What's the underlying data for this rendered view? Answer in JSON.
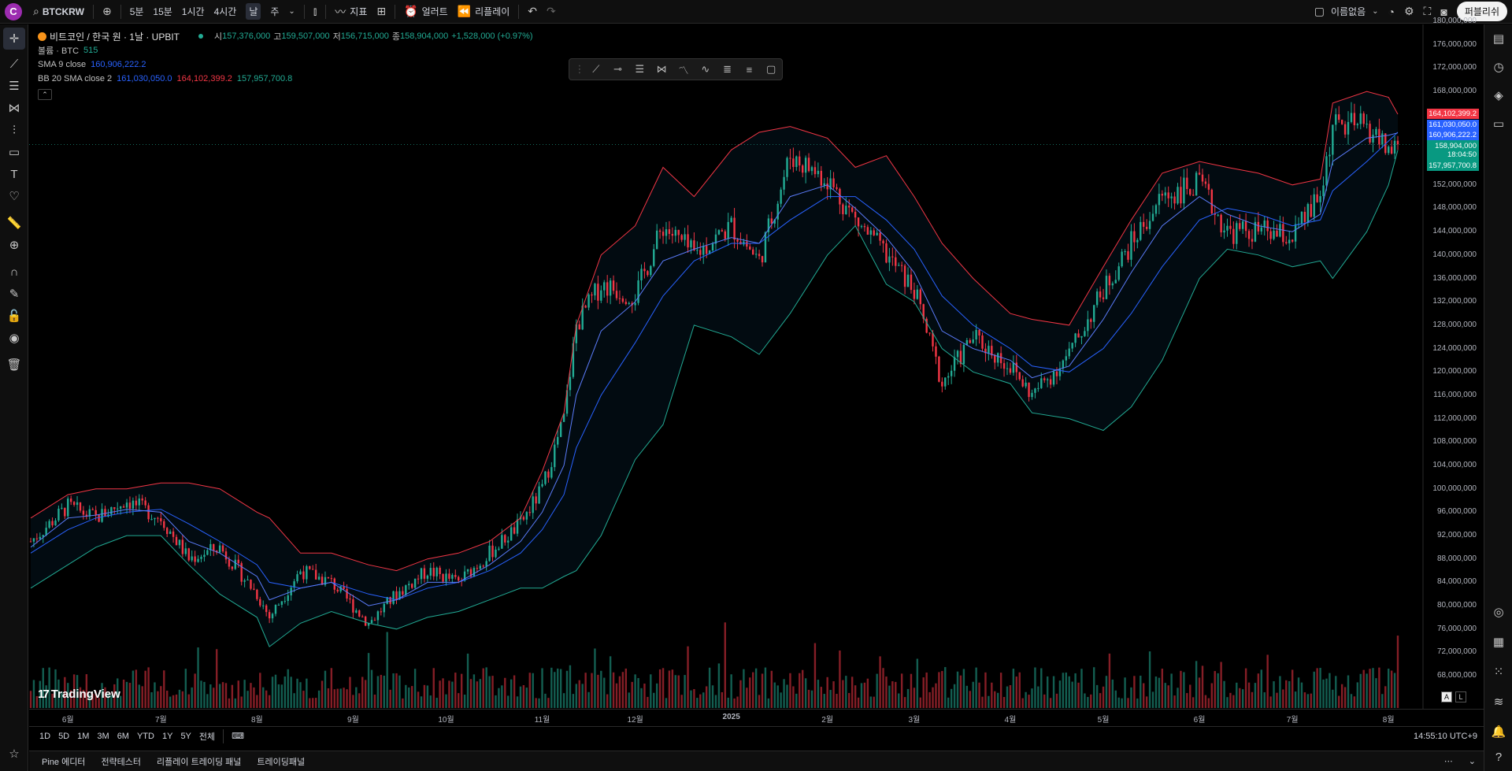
{
  "topbar": {
    "logo_letter": "C",
    "symbol": "BTCKRW",
    "timeframes": [
      "5분",
      "15분",
      "1시간",
      "4시간",
      "날",
      "주"
    ],
    "active_timeframe": "날",
    "indicators_label": "지표",
    "alert_label": "얼러트",
    "replay_label": "리플레이",
    "layout_name": "이름없음",
    "publish_label": "퍼블리쉬"
  },
  "legend": {
    "title": "비트코인 / 한국 원 · 1날 · UPBIT",
    "open_key": "시",
    "open": "157,376,000",
    "high_key": "고",
    "high": "159,507,000",
    "low_key": "저",
    "low": "156,715,000",
    "close_key": "종",
    "close": "158,904,000",
    "change": "+1,528,000 (+0.97%)",
    "volume_label": "볼륨 · BTC",
    "volume_value": "515",
    "sma_label": "SMA 9 close",
    "sma_value": "160,906,222.2",
    "bb_label": "BB 20 SMA close 2",
    "bb_basis": "161,030,050.0",
    "bb_upper": "164,102,399.2",
    "bb_lower": "157,957,700.8"
  },
  "price_tags": {
    "upper": "164,102,399.2",
    "basis": "161,030,050.0",
    "sma": "160,906,222.2",
    "last": "158,904,000",
    "countdown": "18:04:50",
    "lower": "157,957,700.8"
  },
  "colors": {
    "up": "#22ab94",
    "down": "#f23645",
    "sma": "#2962ff",
    "bb_upper": "#f23645",
    "bb_lower": "#22ab94"
  },
  "timeaxis": [
    "6월",
    "7월",
    "8월",
    "9월",
    "10월",
    "11월",
    "12월",
    "2025",
    "2월",
    "3월",
    "4월",
    "5월",
    "6월",
    "7월",
    "8월"
  ],
  "rangebar": {
    "ranges": [
      "1D",
      "5D",
      "1M",
      "3M",
      "6M",
      "YTD",
      "1Y",
      "5Y",
      "전체"
    ],
    "clock": "14:55:10 UTC+9"
  },
  "bottomtabs": [
    "Pine 에디터",
    "전략테스터",
    "리플레이 트레이딩 패널",
    "트레이딩패널"
  ],
  "watermark": "TradingView",
  "scale_toggles": [
    "A",
    "L"
  ],
  "chart_data": {
    "type": "line",
    "title": "비트코인 / 한국 원 · 1날 · UPBIT",
    "xlabel": "",
    "ylabel": "",
    "ylim": [
      66000000,
      180000000
    ],
    "yticks": [
      68000000,
      72000000,
      76000000,
      80000000,
      84000000,
      88000000,
      92000000,
      96000000,
      100000000,
      104000000,
      108000000,
      112000000,
      116000000,
      120000000,
      124000000,
      128000000,
      132000000,
      136000000,
      140000000,
      144000000,
      148000000,
      152000000,
      156000000,
      160000000,
      164000000,
      168000000,
      172000000,
      176000000,
      180000000
    ],
    "x": [
      "2024-05-20",
      "2024-06-01",
      "2024-06-10",
      "2024-06-20",
      "2024-07-01",
      "2024-07-10",
      "2024-07-20",
      "2024-08-01",
      "2024-08-05",
      "2024-08-15",
      "2024-08-25",
      "2024-09-06",
      "2024-09-15",
      "2024-09-25",
      "2024-10-05",
      "2024-10-15",
      "2024-10-25",
      "2024-11-01",
      "2024-11-08",
      "2024-11-12",
      "2024-11-20",
      "2024-12-01",
      "2024-12-10",
      "2024-12-20",
      "2025-01-01",
      "2025-01-10",
      "2025-01-20",
      "2025-02-01",
      "2025-02-10",
      "2025-02-20",
      "2025-03-01",
      "2025-03-10",
      "2025-03-20",
      "2025-04-01",
      "2025-04-08",
      "2025-04-20",
      "2025-05-01",
      "2025-05-10",
      "2025-05-20",
      "2025-06-01",
      "2025-06-10",
      "2025-06-20",
      "2025-07-01",
      "2025-07-10",
      "2025-07-14",
      "2025-07-25",
      "2025-08-01",
      "2025-08-04"
    ],
    "series": [
      {
        "name": "종",
        "values": [
          91000000,
          97000000,
          95000000,
          98000000,
          95000000,
          88000000,
          90000000,
          82000000,
          78000000,
          86000000,
          84000000,
          77000000,
          82000000,
          86000000,
          84000000,
          89000000,
          94000000,
          100000000,
          112000000,
          128000000,
          135000000,
          133000000,
          145000000,
          140000000,
          145000000,
          139000000,
          157000000,
          153000000,
          146000000,
          140000000,
          134000000,
          118000000,
          126000000,
          121000000,
          116000000,
          123000000,
          134000000,
          142000000,
          150000000,
          152000000,
          144000000,
          144000000,
          143000000,
          150000000,
          162000000,
          162000000,
          158000000,
          158904000
        ]
      },
      {
        "name": "SMA 9 close",
        "values": [
          90000000,
          95000000,
          95500000,
          96500000,
          96000000,
          91000000,
          89000000,
          85000000,
          81000000,
          83000000,
          84000000,
          80000000,
          81000000,
          84000000,
          84000000,
          87000000,
          91000000,
          96000000,
          104000000,
          116000000,
          127000000,
          132000000,
          139000000,
          141000000,
          143000000,
          142000000,
          150000000,
          152000000,
          148000000,
          143000000,
          137000000,
          127000000,
          124000000,
          122000000,
          119000000,
          121000000,
          129000000,
          137000000,
          145000000,
          150000000,
          147000000,
          145000000,
          144000000,
          147000000,
          156000000,
          160000000,
          160500000,
          160906222
        ]
      },
      {
        "name": "BB 20 SMA close 2",
        "values": [
          89000000,
          93000000,
          95000000,
          96000000,
          96500000,
          94000000,
          91000000,
          87000000,
          84000000,
          83000000,
          84000000,
          82000000,
          81000000,
          83000000,
          84000000,
          86000000,
          89000000,
          93000000,
          99000000,
          107000000,
          116000000,
          125000000,
          133000000,
          139000000,
          142000000,
          142000000,
          146000000,
          150000000,
          150000000,
          146000000,
          141000000,
          133000000,
          128000000,
          124000000,
          121000000,
          120000000,
          124000000,
          130000000,
          138000000,
          146000000,
          148000000,
          147000000,
          145000000,
          146000000,
          151000000,
          156000000,
          159500000,
          161030050
        ]
      },
      {
        "name": "upper",
        "values": [
          95000000,
          99000000,
          100000000,
          100000000,
          101000000,
          101000000,
          100000000,
          96000000,
          95000000,
          89000000,
          89000000,
          87000000,
          86000000,
          88000000,
          89000000,
          91000000,
          95000000,
          103000000,
          113000000,
          128000000,
          140000000,
          145000000,
          155000000,
          150000000,
          158000000,
          161000000,
          162000000,
          160000000,
          155000000,
          157000000,
          150000000,
          142000000,
          136000000,
          130000000,
          129000000,
          128000000,
          138000000,
          146000000,
          154000000,
          156000000,
          155000000,
          154000000,
          152000000,
          153000000,
          166000000,
          168000000,
          167000000,
          164102399
        ]
      },
      {
        "name": "lower",
        "values": [
          83000000,
          87000000,
          90000000,
          92000000,
          92000000,
          87000000,
          82000000,
          78000000,
          73000000,
          77000000,
          79000000,
          77000000,
          76000000,
          78000000,
          79000000,
          81000000,
          83000000,
          83000000,
          85000000,
          86000000,
          92000000,
          105000000,
          111000000,
          128000000,
          126000000,
          123000000,
          130000000,
          140000000,
          145000000,
          135000000,
          132000000,
          124000000,
          120000000,
          118000000,
          113000000,
          112000000,
          110000000,
          114000000,
          122000000,
          136000000,
          141000000,
          140000000,
          138000000,
          139000000,
          136000000,
          144000000,
          152000000,
          157957700
        ]
      }
    ]
  }
}
